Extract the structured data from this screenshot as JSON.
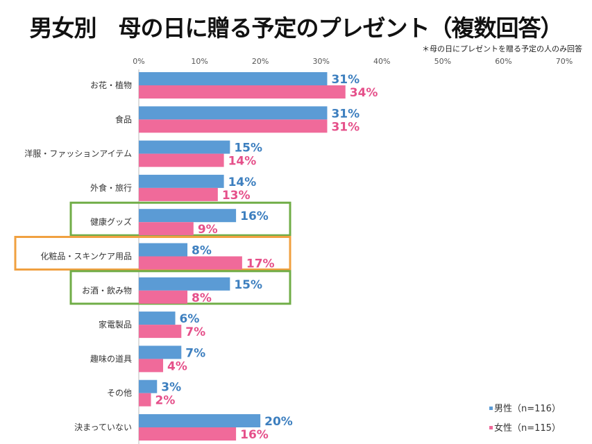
{
  "chart_data": {
    "type": "bar",
    "orientation": "horizontal",
    "title": "男女別　母の日に贈る予定のプレゼント（複数回答）",
    "subtitle": "＊母の日にプレゼントを贈る予定の人のみ回答",
    "xlim": [
      0,
      70
    ],
    "ticks": [
      "0%",
      "10%",
      "20%",
      "30%",
      "40%",
      "50%",
      "60%",
      "70%"
    ],
    "grid": false,
    "legend_position": "bottom-right",
    "categories": [
      "お花・植物",
      "食品",
      "洋服・ファッションアイテム",
      "外食・旅行",
      "健康グッズ",
      "化粧品・スキンケア用品",
      "お酒・飲み物",
      "家電製品",
      "趣味の道具",
      "その他",
      "決まっていない"
    ],
    "series": [
      {
        "name": "男性（n=116）",
        "color": "#5b9bd5",
        "label_color": "#3d7fbf",
        "values": [
          31,
          31,
          15,
          14,
          16,
          8,
          15,
          6,
          7,
          3,
          20
        ]
      },
      {
        "name": "女性（n=115）",
        "color": "#f06a9a",
        "label_color": "#e5508a",
        "values": [
          34,
          31,
          14,
          13,
          9,
          17,
          8,
          7,
          4,
          2,
          16
        ]
      }
    ],
    "highlights": [
      {
        "category": "健康グッズ",
        "color": "#70ad47"
      },
      {
        "category": "化粧品・スキンケア用品",
        "color": "#f0a040"
      },
      {
        "category": "お酒・飲み物",
        "color": "#70ad47"
      }
    ]
  }
}
